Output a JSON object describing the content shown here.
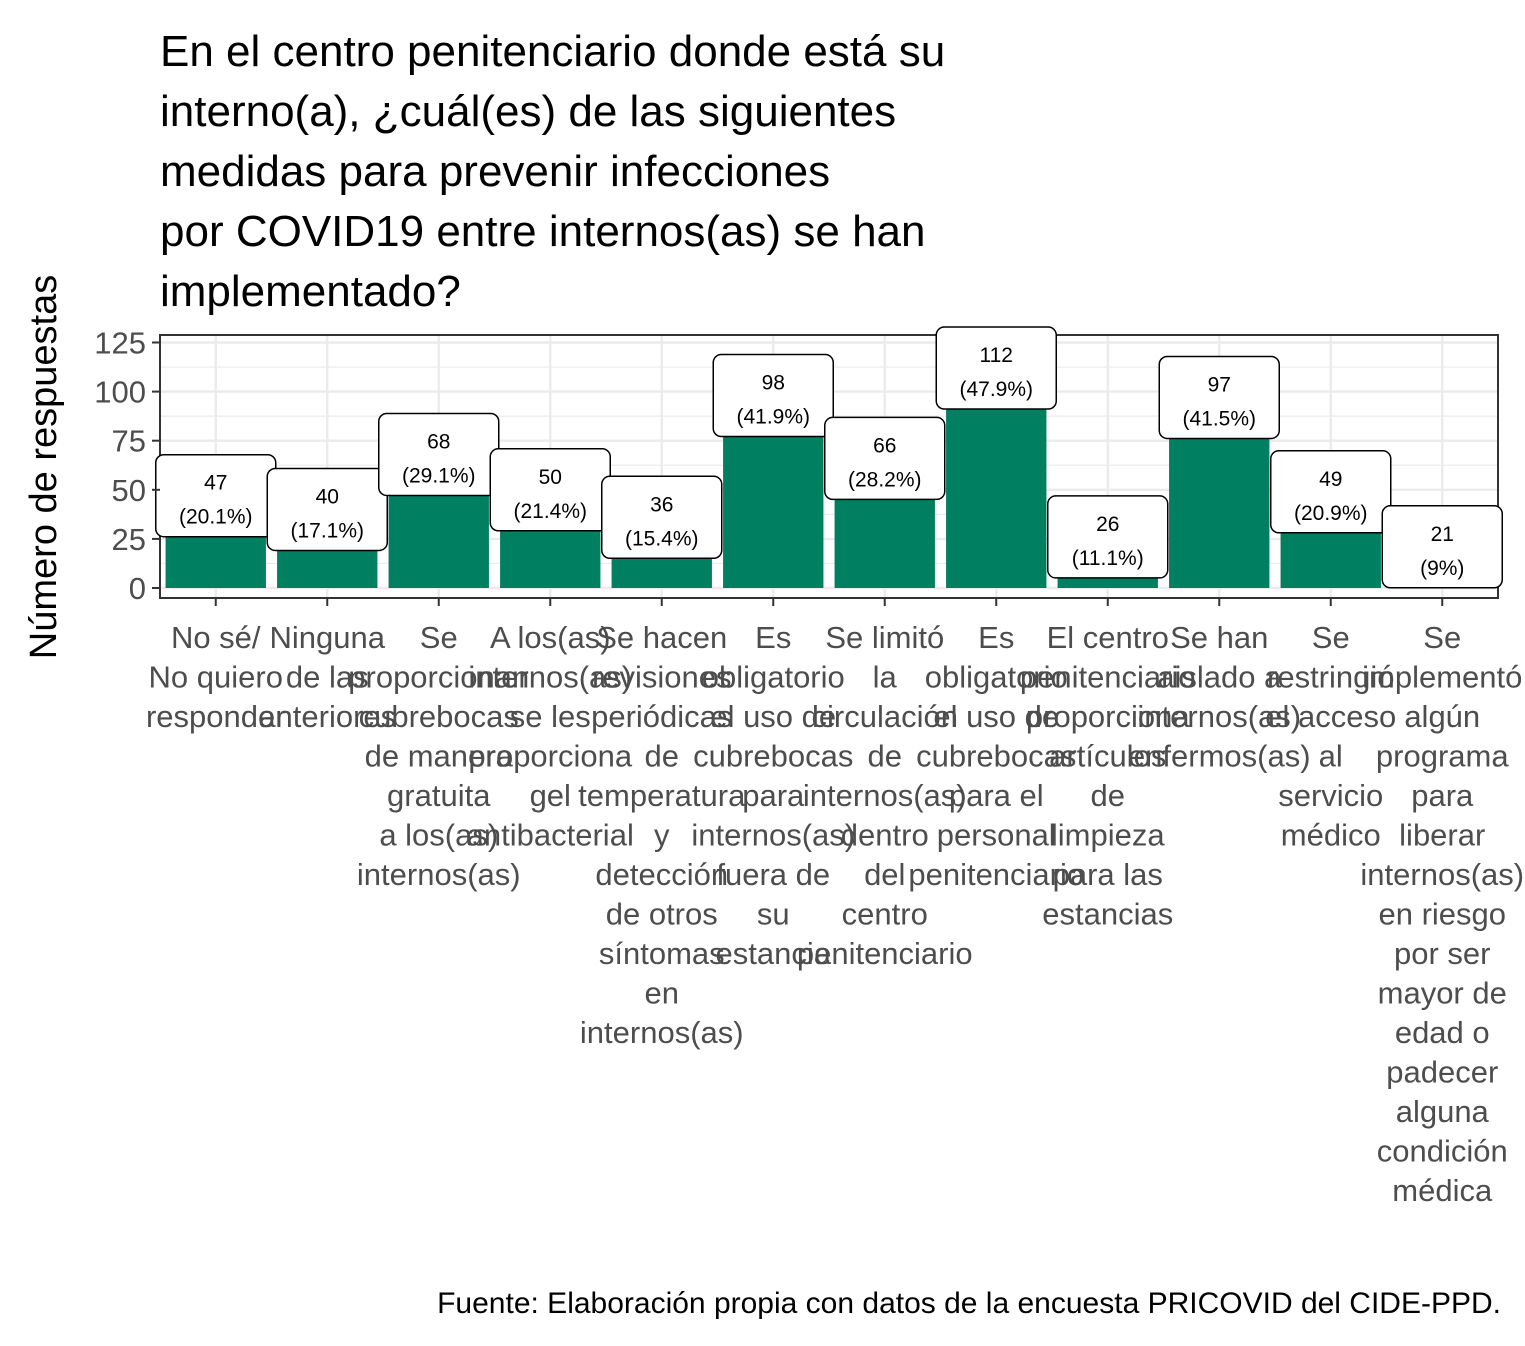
{
  "chart_data": {
    "type": "bar",
    "title": "En el centro penitenciario donde está su interno(a), ¿cuál(es) de las siguientes medidas para prevenir infecciones por COVID19 entre internos(as) se han implementado?",
    "title_lines": [
      "En el centro penitenciario donde está su",
      "interno(a), ¿cuál(es) de las siguientes",
      "medidas para prevenir infecciones",
      "por COVID19 entre internos(as) se han",
      "implementado?"
    ],
    "ylabel": "Número de respuestas",
    "xlabel": "",
    "ylim": [
      0,
      125
    ],
    "yticks": [
      0,
      25,
      50,
      75,
      100,
      125
    ],
    "grid": true,
    "bar_color": "#008060",
    "caption": "Fuente: Elaboración propia con datos de la encuesta PRICOVID del CIDE-PPD.",
    "categories": [
      [
        "No sé/",
        "No quiero",
        "responder"
      ],
      [
        "Ninguna",
        "de las",
        "anteriores"
      ],
      [
        "Se",
        "proporcionan",
        "cubrebocas",
        "de manera",
        "gratuita",
        "a los(as)",
        "internos(as)"
      ],
      [
        "A los(as)",
        "internos(as)",
        "se les",
        "proporciona",
        "gel",
        "antibacterial"
      ],
      [
        "Se hacen",
        "revisiones",
        "periódicas",
        "de",
        "temperatura",
        "y",
        "detección",
        "de otros",
        "síntomas",
        "en",
        "internos(as)"
      ],
      [
        "Es",
        "obligatorio",
        "el uso de",
        "cubrebocas",
        "para",
        "internos(as)",
        "fuera de",
        "su",
        "estancia"
      ],
      [
        "Se limitó",
        "la",
        "circulación",
        "de",
        "internos(as)",
        "dentro",
        "del",
        "centro",
        "penitenciario"
      ],
      [
        "Es",
        "obligatorio",
        "el uso de",
        "cubrebocas",
        "para el",
        "personal",
        "penitenciario"
      ],
      [
        "El centro",
        "penitenciario",
        "proporciona",
        "artículos",
        "de",
        "limpieza",
        "para las",
        "estancias"
      ],
      [
        "Se han",
        "aislado a",
        "internos(as)",
        "enfermos(as)"
      ],
      [
        "Se",
        "restringió",
        "el acceso",
        "al",
        "servicio",
        "médico"
      ],
      [
        "Se",
        "implementó",
        "algún",
        "programa",
        "para",
        "liberar",
        "internos(as)",
        "en riesgo",
        "por ser",
        "mayor de",
        "edad o",
        "padecer",
        "alguna",
        "condición",
        "médica"
      ]
    ],
    "values": [
      47,
      40,
      68,
      50,
      36,
      98,
      66,
      112,
      26,
      97,
      49,
      21
    ],
    "percent_labels": [
      "(20.1%)",
      "(17.1%)",
      "(29.1%)",
      "(21.4%)",
      "(15.4%)",
      "(41.9%)",
      "(28.2%)",
      "(47.9%)",
      "(11.1%)",
      "(41.5%)",
      "(20.9%)",
      "(9%)"
    ]
  }
}
